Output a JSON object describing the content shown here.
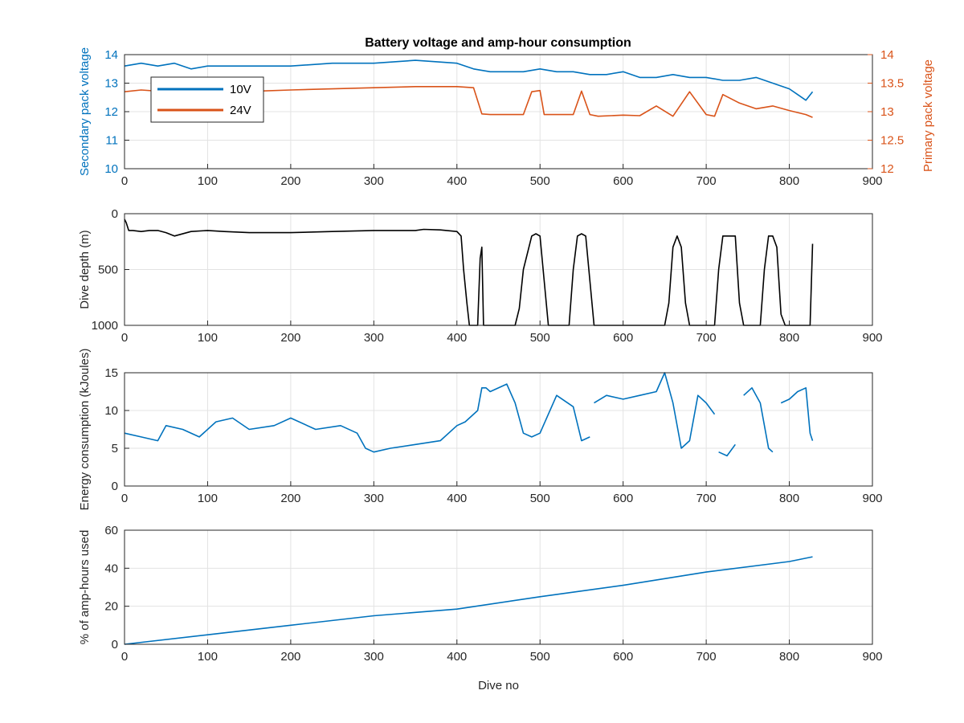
{
  "chart_data": [
    {
      "type": "line",
      "title": "Battery voltage and amp-hour consumption",
      "xlabel": "",
      "ylabel": "Secondary pack voltage",
      "ylabel_right": "Primary pack voltage",
      "xlim": [
        0,
        900
      ],
      "ylim": [
        10,
        14
      ],
      "ylim_right": [
        12,
        14
      ],
      "xticks": [
        "0",
        "100",
        "200",
        "300",
        "400",
        "500",
        "600",
        "700",
        "800",
        "900"
      ],
      "yticks": [
        "10",
        "11",
        "12",
        "13",
        "14"
      ],
      "yticks_right": [
        "12",
        "12.5",
        "13",
        "13.5",
        "14"
      ],
      "grid": true,
      "legend_position": "top-left",
      "series": [
        {
          "name": "10V",
          "axis": "left",
          "color": "#0072bd",
          "x": [
            0,
            20,
            40,
            60,
            80,
            100,
            150,
            200,
            250,
            300,
            350,
            400,
            420,
            440,
            460,
            480,
            500,
            520,
            540,
            560,
            580,
            600,
            620,
            640,
            660,
            680,
            700,
            720,
            740,
            760,
            780,
            800,
            810,
            820,
            828
          ],
          "y": [
            13.6,
            13.7,
            13.6,
            13.7,
            13.5,
            13.6,
            13.6,
            13.6,
            13.7,
            13.7,
            13.8,
            13.7,
            13.5,
            13.4,
            13.4,
            13.4,
            13.5,
            13.4,
            13.4,
            13.3,
            13.3,
            13.4,
            13.2,
            13.2,
            13.3,
            13.2,
            13.2,
            13.1,
            13.1,
            13.2,
            13.0,
            12.8,
            12.6,
            12.4,
            12.7
          ]
        },
        {
          "name": "24V",
          "axis": "right",
          "color": "#d95319",
          "x": [
            0,
            20,
            50,
            80,
            120,
            160,
            200,
            250,
            300,
            350,
            400,
            420,
            430,
            440,
            460,
            480,
            490,
            500,
            505,
            520,
            540,
            550,
            560,
            570,
            600,
            620,
            640,
            660,
            680,
            700,
            710,
            720,
            740,
            760,
            780,
            800,
            820,
            828
          ],
          "y": [
            13.35,
            13.38,
            13.35,
            13.36,
            13.35,
            13.36,
            13.38,
            13.4,
            13.42,
            13.44,
            13.44,
            13.42,
            12.96,
            12.95,
            12.95,
            12.95,
            13.35,
            13.37,
            12.95,
            12.95,
            12.95,
            13.36,
            12.95,
            12.92,
            12.94,
            12.93,
            13.1,
            12.92,
            13.35,
            12.95,
            12.92,
            13.3,
            13.15,
            13.05,
            13.1,
            13.02,
            12.95,
            12.9
          ]
        }
      ]
    },
    {
      "type": "line",
      "title": "",
      "xlabel": "",
      "ylabel": "Dive depth (m)",
      "xlim": [
        0,
        900
      ],
      "ylim": [
        0,
        1000
      ],
      "y_reversed": true,
      "xticks": [
        "0",
        "100",
        "200",
        "300",
        "400",
        "500",
        "600",
        "700",
        "800",
        "900"
      ],
      "yticks": [
        "0",
        "500",
        "1000"
      ],
      "grid": true,
      "series": [
        {
          "color": "#000000",
          "x": [
            0,
            2,
            5,
            10,
            20,
            30,
            40,
            50,
            60,
            80,
            100,
            120,
            150,
            180,
            200,
            250,
            300,
            350,
            360,
            380,
            400,
            405,
            408,
            412,
            415,
            425,
            428,
            430,
            432,
            434,
            440,
            470,
            475,
            480,
            490,
            495,
            500,
            505,
            510,
            520,
            535,
            540,
            545,
            550,
            555,
            560,
            565,
            580,
            600,
            620,
            640,
            650,
            655,
            660,
            665,
            670,
            675,
            680,
            685,
            710,
            715,
            720,
            725,
            735,
            740,
            745,
            765,
            770,
            775,
            780,
            785,
            790,
            795,
            820,
            825,
            828
          ],
          "y": [
            50,
            80,
            150,
            150,
            160,
            150,
            150,
            170,
            200,
            160,
            150,
            160,
            170,
            170,
            170,
            160,
            150,
            150,
            140,
            145,
            160,
            200,
            500,
            800,
            1000,
            1000,
            400,
            300,
            1000,
            1000,
            1000,
            1000,
            850,
            500,
            200,
            180,
            200,
            600,
            1000,
            1000,
            1000,
            500,
            200,
            180,
            200,
            600,
            1000,
            1000,
            1000,
            1000,
            1000,
            1000,
            800,
            300,
            200,
            300,
            800,
            1000,
            1000,
            1000,
            500,
            200,
            200,
            200,
            800,
            1000,
            1000,
            500,
            200,
            200,
            300,
            900,
            1000,
            1000,
            1000,
            270
          ]
        }
      ]
    },
    {
      "type": "line",
      "title": "",
      "xlabel": "",
      "ylabel": "Energy consumption (kJoules)",
      "xlim": [
        0,
        900
      ],
      "ylim": [
        0,
        15
      ],
      "xticks": [
        "0",
        "100",
        "200",
        "300",
        "400",
        "500",
        "600",
        "700",
        "800",
        "900"
      ],
      "yticks": [
        "0",
        "5",
        "10",
        "15"
      ],
      "grid": true,
      "series": [
        {
          "color": "#0072bd",
          "x": [
            0,
            20,
            40,
            50,
            70,
            90,
            110,
            130,
            150,
            180,
            200,
            230,
            260,
            280,
            290,
            300,
            320,
            350,
            380,
            400,
            410,
            425,
            430,
            435,
            440,
            460,
            470,
            480,
            490,
            500,
            520,
            540,
            550,
            560
          ],
          "y": [
            7.0,
            6.5,
            6.0,
            8.0,
            7.5,
            6.5,
            8.5,
            9.0,
            7.5,
            8.0,
            9.0,
            7.5,
            8.0,
            7.0,
            5.0,
            4.5,
            5.0,
            5.5,
            6.0,
            8.0,
            8.5,
            10.0,
            13.0,
            13.0,
            12.5,
            13.5,
            11.0,
            7.0,
            6.5,
            7.0,
            12.0,
            10.5,
            6.0,
            6.5
          ]
        },
        {
          "color": "#0072bd",
          "x": [
            565,
            580,
            600,
            620,
            640,
            650,
            660,
            670,
            680,
            690,
            700,
            710
          ],
          "y": [
            11.0,
            12.0,
            11.5,
            12.0,
            12.5,
            15.0,
            11.0,
            5.0,
            6.0,
            12.0,
            11.0,
            9.5
          ]
        },
        {
          "color": "#0072bd",
          "x": [
            715,
            725,
            735
          ],
          "y": [
            4.5,
            4.0,
            5.5
          ]
        },
        {
          "color": "#0072bd",
          "x": [
            745,
            755,
            765,
            775,
            780
          ],
          "y": [
            12.0,
            13.0,
            11.0,
            5.0,
            4.5
          ]
        },
        {
          "color": "#0072bd",
          "x": [
            790,
            800,
            810,
            820,
            825,
            828
          ],
          "y": [
            11.0,
            11.5,
            12.5,
            13.0,
            7.0,
            6.0
          ]
        }
      ]
    },
    {
      "type": "line",
      "title": "",
      "xlabel": "Dive no",
      "ylabel": "% of amp-hours used",
      "xlim": [
        0,
        900
      ],
      "ylim": [
        0,
        60
      ],
      "xticks": [
        "0",
        "100",
        "200",
        "300",
        "400",
        "500",
        "600",
        "700",
        "800",
        "900"
      ],
      "yticks": [
        "0",
        "20",
        "40",
        "60"
      ],
      "grid": true,
      "series": [
        {
          "color": "#0072bd",
          "x": [
            0,
            100,
            200,
            300,
            400,
            500,
            600,
            700,
            800,
            828
          ],
          "y": [
            0,
            5,
            10,
            15,
            18.5,
            25,
            31,
            38,
            43.5,
            46
          ]
        }
      ]
    }
  ]
}
